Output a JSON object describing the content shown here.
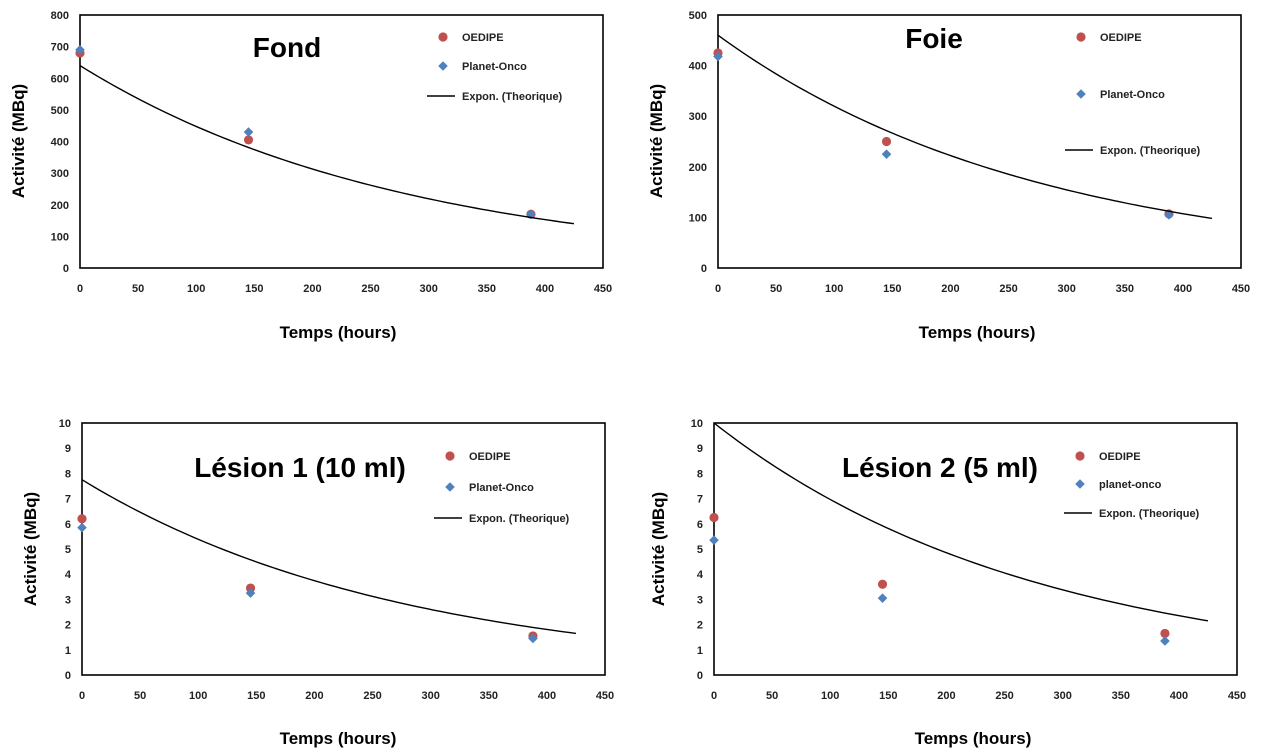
{
  "chart_data": [
    {
      "type": "scatter",
      "title": "Fond",
      "xlabel": "Temps (hours)",
      "ylabel": "Activité (MBq)",
      "xlim": [
        0,
        450
      ],
      "ylim": [
        0,
        800
      ],
      "xticks": [
        0,
        50,
        100,
        150,
        200,
        250,
        300,
        350,
        400,
        450
      ],
      "yticks": [
        0,
        100,
        200,
        300,
        400,
        500,
        600,
        700,
        800
      ],
      "legend_position": "top-right",
      "series": [
        {
          "name": "OEDIPE",
          "marker": "circle",
          "color": "#c0504d",
          "x": [
            0,
            145,
            388
          ],
          "y": [
            680,
            405,
            170
          ]
        },
        {
          "name": "Planet-Onco",
          "marker": "diamond",
          "color": "#4f81bd",
          "x": [
            0,
            145,
            388
          ],
          "y": [
            690,
            430,
            170
          ]
        },
        {
          "name": "Expon. (Theorique)",
          "marker": "line",
          "color": "#000000",
          "fit": "exponential",
          "x_start": 0,
          "x_end": 425,
          "y_start": 640,
          "y_end": 140
        }
      ]
    },
    {
      "type": "scatter",
      "title": "Foie",
      "xlabel": "Temps (hours)",
      "ylabel": "Activité (MBq)",
      "xlim": [
        0,
        450
      ],
      "ylim": [
        0,
        500
      ],
      "xticks": [
        0,
        50,
        100,
        150,
        200,
        250,
        300,
        350,
        400,
        450
      ],
      "yticks": [
        0,
        100,
        200,
        300,
        400,
        500
      ],
      "legend_position": "top-right",
      "series": [
        {
          "name": "OEDIPE",
          "marker": "circle",
          "color": "#c0504d",
          "x": [
            0,
            145,
            388
          ],
          "y": [
            425,
            250,
            107
          ]
        },
        {
          "name": "Planet-Onco",
          "marker": "diamond",
          "color": "#4f81bd",
          "x": [
            0,
            145,
            388
          ],
          "y": [
            418,
            225,
            105
          ]
        },
        {
          "name": "Expon. (Theorique)",
          "marker": "line",
          "color": "#000000",
          "fit": "exponential",
          "x_start": 0,
          "x_end": 425,
          "y_start": 460,
          "y_end": 98
        }
      ]
    },
    {
      "type": "scatter",
      "title": "Lésion 1 (10 ml)",
      "xlabel": "Temps (hours)",
      "ylabel": "Activité (MBq)",
      "xlim": [
        0,
        450
      ],
      "ylim": [
        0,
        10
      ],
      "xticks": [
        0,
        50,
        100,
        150,
        200,
        250,
        300,
        350,
        400,
        450
      ],
      "yticks": [
        0,
        1,
        2,
        3,
        4,
        5,
        6,
        7,
        8,
        9,
        10
      ],
      "legend_position": "top-right",
      "series": [
        {
          "name": "OEDIPE",
          "marker": "circle",
          "color": "#c0504d",
          "x": [
            0,
            145,
            388
          ],
          "y": [
            6.2,
            3.45,
            1.55
          ]
        },
        {
          "name": "Planet-Onco",
          "marker": "diamond",
          "color": "#4f81bd",
          "x": [
            0,
            145,
            388
          ],
          "y": [
            5.85,
            3.25,
            1.45
          ]
        },
        {
          "name": "Expon. (Theorique)",
          "marker": "line",
          "color": "#000000",
          "fit": "exponential",
          "x_start": 0,
          "x_end": 425,
          "y_start": 7.75,
          "y_end": 1.65
        }
      ]
    },
    {
      "type": "scatter",
      "title": "Lésion 2 (5 ml)",
      "xlabel": "Temps (hours)",
      "ylabel": "Activité (MBq)",
      "xlim": [
        0,
        450
      ],
      "ylim": [
        0,
        10
      ],
      "xticks": [
        0,
        50,
        100,
        150,
        200,
        250,
        300,
        350,
        400,
        450
      ],
      "yticks": [
        0,
        1,
        2,
        3,
        4,
        5,
        6,
        7,
        8,
        9,
        10
      ],
      "legend_position": "top-right",
      "series": [
        {
          "name": "OEDIPE",
          "marker": "circle",
          "color": "#c0504d",
          "x": [
            0,
            145,
            388
          ],
          "y": [
            6.25,
            3.6,
            1.65
          ]
        },
        {
          "name": "planet-onco",
          "marker": "diamond",
          "color": "#4f81bd",
          "x": [
            0,
            145,
            388
          ],
          "y": [
            5.35,
            3.05,
            1.35
          ]
        },
        {
          "name": "Expon. (Theorique)",
          "marker": "line",
          "color": "#000000",
          "fit": "exponential",
          "x_start": 0,
          "x_end": 425,
          "y_start": 10.0,
          "y_end": 2.15
        }
      ]
    }
  ]
}
